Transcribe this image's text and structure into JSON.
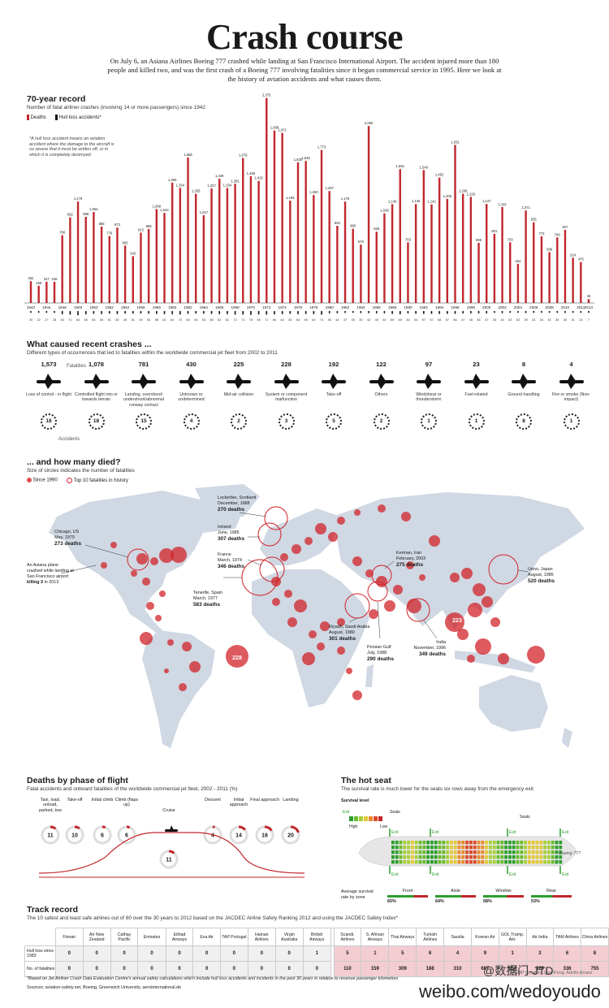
{
  "header": {
    "title": "Crash course",
    "intro": "On July 6, an Asiana Airlines Boeing 777 crashed while landing at San Francisco International Airport. The accident injured more than 180 people and killed two, and was the first crash of a Boeing 777 involving fatalities since it began commercial service in 1995. Here we look at the history of aviation accidents and what causes them."
  },
  "record": {
    "title": "70-year record",
    "subtitle": "Number of fatal airliner crashes (involving 14 or more passengers) since 1942",
    "legend_deaths": "Deaths",
    "legend_hull": "Hull loss accidents*",
    "footnote": "*A hull loss accident means an aviation accident where the damage to the aircraft is so severe that it must be written off, or in which it is completely destroyed"
  },
  "chart_data": {
    "type": "bar",
    "title": "70-year record",
    "x": [
      1942,
      1943,
      1944,
      1945,
      1946,
      1947,
      1948,
      1949,
      1950,
      1951,
      1952,
      1953,
      1954,
      1955,
      1956,
      1957,
      1958,
      1959,
      1960,
      1961,
      1962,
      1963,
      1964,
      1965,
      1966,
      1967,
      1968,
      1969,
      1970,
      1971,
      1972,
      1973,
      1974,
      1975,
      1976,
      1977,
      1978,
      1979,
      1980,
      1981,
      1982,
      1983,
      1984,
      1985,
      1986,
      1987,
      1988,
      1989,
      1990,
      1991,
      1992,
      1993,
      1994,
      1995,
      1996,
      1997,
      1998,
      1999,
      2000,
      2001,
      2002,
      2003,
      2004,
      2005,
      2006,
      2007,
      2008,
      2009,
      2010,
      2011,
      2012,
      2013
    ],
    "x_tick_labels": [
      "1942",
      "1944",
      "1946",
      "1948",
      "1950",
      "1952",
      "1954",
      "1956",
      "1958",
      "1960",
      "1962",
      "1964",
      "1966",
      "1968",
      "1970",
      "1972",
      "1974",
      "1976",
      "1978",
      "1980",
      "1982",
      "1984",
      "1986",
      "1988",
      "1990",
      "1992",
      "1994",
      "1996",
      "1998",
      "2000",
      "2002",
      "2004",
      "2006",
      "2008",
      "2010",
      "2012",
      "2013"
    ],
    "series": [
      {
        "name": "Deaths",
        "values": [
          252,
          199,
          247,
          246,
          786,
          992,
          1176,
          998,
          1054,
          885,
          776,
          873,
          665,
          542,
          815,
          858,
          1088,
          1044,
          1395,
          1334,
          1686,
          1265,
          1017,
          1327,
          1439,
          1334,
          1381,
          1679,
          1469,
          1415,
          2375,
          1998,
          1971,
          1186,
          1630,
          1645,
          1250,
          1773,
          1297,
          894,
          1175,
          860,
          676,
          2050,
          826,
          1039,
          1145,
          1551,
          703,
          1146,
          1540,
          1142,
          1452,
          1205,
          1831,
          1266,
          1229,
          696,
          1147,
          801,
          1112,
          703,
          454,
          1071,
          935,
          773,
          589,
          760,
          847,
          524,
          475,
          45
        ]
      },
      {
        "name": "Hull loss accidents*",
        "values": [
          20,
          22,
          27,
          28,
          63,
          72,
          84,
          65,
          56,
          60,
          51,
          60,
          49,
          51,
          49,
          53,
          58,
          62,
          64,
          70,
          56,
          49,
          53,
          58,
          62,
          61,
          72,
          71,
          78,
          69,
          71,
          66,
          62,
          55,
          63,
          59,
          62,
          74,
          46,
          44,
          37,
          35,
          39,
          42,
          45,
          44,
          59,
          65,
          46,
          54,
          57,
          57,
          58,
          57,
          56,
          47,
          45,
          46,
          47,
          35,
          43,
          33,
          33,
          39,
          33,
          34,
          31,
          35,
          36,
          31,
          23,
          7
        ]
      }
    ],
    "ylim": [
      0,
      2400
    ],
    "grid": false,
    "legend": "top-left"
  },
  "causes": {
    "title": "What caused recent crashes ...",
    "subtitle": "Different types of occurrences that led to fatalities within the worldwide commercial jet fleet from 2002 to 2011",
    "fatalities_label": "Fatalities",
    "accidents_label": "Accidents",
    "items": [
      {
        "fatalities": "1,573",
        "label": "Loss of control - in flight",
        "accidents": "18"
      },
      {
        "fatalities": "1,078",
        "label": "Controlled flight into or towards terrain",
        "accidents": "18"
      },
      {
        "fatalities": "781",
        "label": "Landing, overshoot/ undershoot/abnormal runway contact",
        "accidents": "15"
      },
      {
        "fatalities": "430",
        "label": "Unknown or undetermined",
        "accidents": "4"
      },
      {
        "fatalities": "225",
        "label": "Mid-air collision",
        "accidents": "2"
      },
      {
        "fatalities": "228",
        "label": "System or component malfunction",
        "accidents": "3"
      },
      {
        "fatalities": "192",
        "label": "Take-off",
        "accidents": "5"
      },
      {
        "fatalities": "122",
        "label": "Others",
        "accidents": "2"
      },
      {
        "fatalities": "97",
        "label": "Windshear or thunderstorm",
        "accidents": "1"
      },
      {
        "fatalities": "23",
        "label": "Fuel-related",
        "accidents": "1"
      },
      {
        "fatalities": "8",
        "label": "Ground handling",
        "accidents": "8"
      },
      {
        "fatalities": "4",
        "label": "Fire or smoke (Non-impact)",
        "accidents": "1"
      }
    ]
  },
  "map": {
    "title": "... and how many died?",
    "subtitle": "Size of circles indicates the number of fatalities",
    "legend_since": "Since 1990",
    "legend_top": "Top 10 fatalities in history",
    "asiana_note_pre": "An Asiana plane crashed while landing at San Francisco airport",
    "asiana_killing": "killing 2",
    "asiana_note_post": "in 2013",
    "bubble_228": "228",
    "bubble_223": "223",
    "callouts": [
      {
        "place": "Chicago, US",
        "date": "May, 1979",
        "deaths": "273 deaths"
      },
      {
        "place": "Lockerbie, Scotland",
        "date": "December, 1988",
        "deaths": "270 deaths"
      },
      {
        "place": "Ireland",
        "date": "June, 1985",
        "deaths": "307 deaths"
      },
      {
        "place": "France",
        "date": "March, 1974",
        "deaths": "346 deaths"
      },
      {
        "place": "Tenerife, Spain",
        "date": "March, 1977",
        "deaths": "583 deaths"
      },
      {
        "place": "Kerman, Iran",
        "date": "February, 2003",
        "deaths": "275 deaths"
      },
      {
        "place": "Ueno, Japan",
        "date": "August, 1985",
        "deaths": "520 deaths"
      },
      {
        "place": "Riyadh, Saudi Arabia",
        "date": "August, 1980",
        "deaths": "301 deaths"
      },
      {
        "place": "Persian Gulf",
        "date": "July, 1988",
        "deaths": "290 deaths"
      },
      {
        "place": "India",
        "date": "November, 1996",
        "deaths": "349 deaths"
      }
    ]
  },
  "phase": {
    "title": "Deaths by phase of flight",
    "subtitle": "Fatal accidents and onboard fatalities of the worldwide commercial jet fleet, 2002 - 2011 (%)",
    "items": [
      {
        "label": "Taxi, load, unload, parked, tow",
        "value": "11"
      },
      {
        "label": "Take-off",
        "value": "10"
      },
      {
        "label": "Initial climb",
        "value": "6"
      },
      {
        "label": "Climb (flaps up)",
        "value": "6"
      },
      {
        "label": "Cruise",
        "value": "11"
      },
      {
        "label": "Descent",
        "value": "4"
      },
      {
        "label": "Initial approach",
        "value": "14"
      },
      {
        "label": "Final approach",
        "value": "16"
      },
      {
        "label": "Landing",
        "value": "20"
      }
    ]
  },
  "seat": {
    "title": "The hot seat",
    "subtitle": "The survival rate is much lower for the seats six rows away from the emergency exit",
    "survival_level": "Survival level",
    "exit": "Exit",
    "seats": "Seats",
    "high": "High",
    "low": "Low",
    "plane": "Boeing 777",
    "avg_label": "Average survival rate by zone",
    "zones": [
      {
        "name": "Front",
        "rate": "65%"
      },
      {
        "name": "Aisle",
        "rate": "64%"
      },
      {
        "name": "Window",
        "rate": "58%"
      },
      {
        "name": "Rear",
        "rate": "53%"
      }
    ]
  },
  "track": {
    "title": "Track record",
    "subtitle": "The 10 safest and least safe airlines out of 60 over the 30 years to 2012 based on the JACDEC Airline Safety Ranking 2012 and using the JACDEC Safety Index*",
    "row1": "Hull loss since 1983",
    "row2": "No. of fatalities",
    "safest": [
      {
        "name": "Finnair",
        "hull": "0",
        "fatal": "0"
      },
      {
        "name": "Air New Zealand",
        "hull": "0",
        "fatal": "0"
      },
      {
        "name": "Cathay Pacific",
        "hull": "0",
        "fatal": "0"
      },
      {
        "name": "Emirates",
        "hull": "0",
        "fatal": "0"
      },
      {
        "name": "Etihad Airways",
        "hull": "0",
        "fatal": "0"
      },
      {
        "name": "Eva Air",
        "hull": "0",
        "fatal": "0"
      },
      {
        "name": "TAP Portugal",
        "hull": "0",
        "fatal": "0"
      },
      {
        "name": "Hainan Airlines",
        "hull": "0",
        "fatal": "0"
      },
      {
        "name": "Virgin Australia",
        "hull": "0",
        "fatal": "0"
      },
      {
        "name": "British Airways",
        "hull": "1",
        "fatal": "0"
      }
    ],
    "least": [
      {
        "name": "Scandi. Airlines",
        "hull": "5",
        "fatal": "110"
      },
      {
        "name": "S. African Airways",
        "hull": "1",
        "fatal": "159"
      },
      {
        "name": "Thai Airways",
        "hull": "5",
        "fatal": "309"
      },
      {
        "name": "Turkish Airlines",
        "hull": "6",
        "fatal": "188"
      },
      {
        "name": "Saudia",
        "hull": "4",
        "fatal": "310"
      },
      {
        "name": "Korean Air",
        "hull": "9",
        "fatal": "687"
      },
      {
        "name": "GOL Tramp. Aér.",
        "hull": "1",
        "fatal": "154"
      },
      {
        "name": "Air India",
        "hull": "3",
        "fatal": "329"
      },
      {
        "name": "TAM Airlines",
        "hull": "6",
        "fatal": "336"
      },
      {
        "name": "China Airlines",
        "hull": "8",
        "fatal": "755"
      }
    ],
    "footnote": "*Based on Jet Airliner Crash Data Evaluation Centre's annual safety calculations which include hull loss accidents and incidents in the past 30 years in relation to revenue passenger kilometres",
    "sources": "Sources: aviation-safety.net, Boeing, Greenwich University, aerointernational.de",
    "credit": "SCMP Graphic: Jane Pong, Adolfo Arranz"
  },
  "watermark": {
    "handle": "@数据门-JTD",
    "url": "weibo.com/wedoyoudo"
  },
  "colors": {
    "accent": "#c1272d",
    "map_land": "#cfd8e3",
    "bubble": "#d2232a"
  }
}
